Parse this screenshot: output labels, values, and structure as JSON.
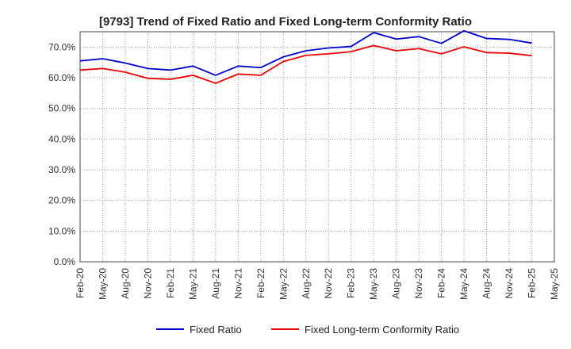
{
  "chart_data": {
    "type": "line",
    "title": "[9793]  Trend of Fixed Ratio and Fixed Long-term Conformity Ratio",
    "xlabel": "",
    "ylabel": "",
    "ylim": [
      0,
      75
    ],
    "y_ticks": [
      "0.0%",
      "10.0%",
      "20.0%",
      "30.0%",
      "40.0%",
      "50.0%",
      "60.0%",
      "70.0%"
    ],
    "y_tick_values": [
      0,
      10,
      20,
      30,
      40,
      50,
      60,
      70
    ],
    "x_ticks": [
      "Feb-20",
      "May-20",
      "Aug-20",
      "Nov-20",
      "Feb-21",
      "May-21",
      "Aug-21",
      "Nov-21",
      "Feb-22",
      "May-22",
      "Aug-22",
      "Nov-22",
      "Feb-23",
      "May-23",
      "Aug-23",
      "Nov-23",
      "Feb-24",
      "May-24",
      "Aug-24",
      "Nov-24",
      "Feb-25",
      "May-25"
    ],
    "categories": [
      "Feb-20",
      "May-20",
      "Aug-20",
      "Nov-20",
      "Feb-21",
      "May-21",
      "Aug-21",
      "Nov-21",
      "Feb-22",
      "May-22",
      "Aug-22",
      "Nov-22",
      "Feb-23",
      "May-23",
      "Aug-23",
      "Nov-23",
      "Feb-24",
      "May-24",
      "Aug-24",
      "Nov-24",
      "Feb-25"
    ],
    "series": [
      {
        "name": "Fixed Ratio",
        "color": "#0000cc",
        "values": [
          65.5,
          66.2,
          64.8,
          63.0,
          62.5,
          63.8,
          60.8,
          63.8,
          63.3,
          66.8,
          68.8,
          69.7,
          70.2,
          74.7,
          72.6,
          73.4,
          71.2,
          75.3,
          72.8,
          72.5,
          71.3
        ]
      },
      {
        "name": "Fixed Long-term Conformity Ratio",
        "color": "#ee0000",
        "values": [
          62.5,
          63.0,
          61.8,
          59.8,
          59.5,
          60.8,
          58.2,
          61.2,
          60.8,
          65.3,
          67.3,
          67.8,
          68.5,
          70.5,
          68.8,
          69.5,
          67.8,
          70.1,
          68.2,
          68.0,
          67.2
        ]
      }
    ],
    "grid": true,
    "legend": "bottom"
  }
}
